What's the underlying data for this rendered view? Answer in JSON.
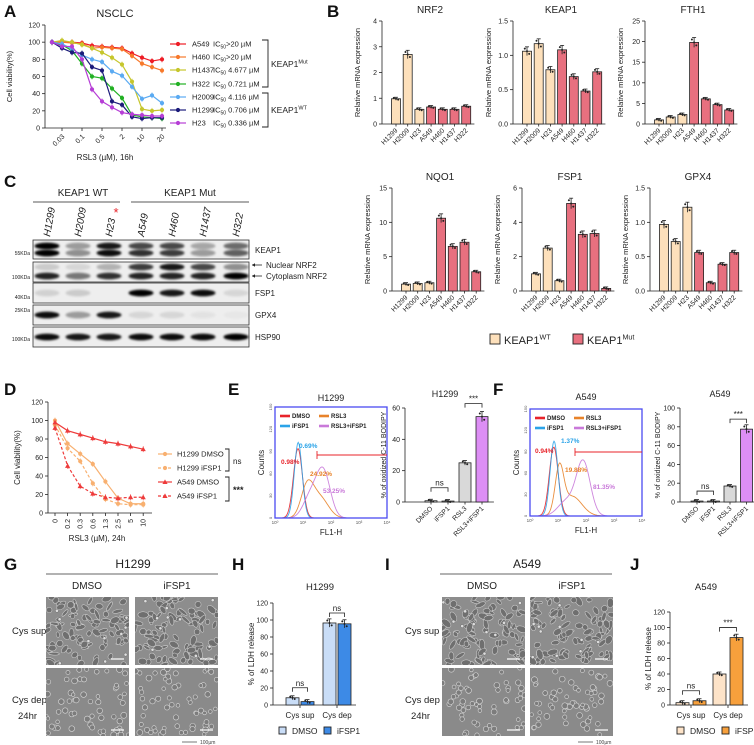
{
  "panel_labels": [
    "A",
    "B",
    "C",
    "D",
    "E",
    "F",
    "G",
    "H",
    "I",
    "J"
  ],
  "chart_data": [
    {
      "type": "line",
      "panel": "A",
      "title": "NSCLC",
      "xlabel": "RSL3 (µM), 16h",
      "ylabel": "Cell viability(%)",
      "ylim": [
        0,
        120
      ],
      "yticks": [
        "0",
        "20",
        "40",
        "60",
        "80",
        "100",
        "120"
      ],
      "xtick_labels": [
        "0.03",
        "0.1",
        "0.5",
        "2",
        "10",
        "20"
      ],
      "xtick_point_index": [
        1,
        3,
        5,
        7,
        9,
        11
      ],
      "ic50_prefix": "IC",
      "ic50_sub": "50",
      "series": [
        {
          "name": "A549",
          "ic50": ">20 µM",
          "group": "Mut",
          "color": "#ee1c25",
          "values": [
            100,
            100,
            100,
            99,
            96,
            95,
            94,
            93,
            87,
            82,
            78,
            80
          ]
        },
        {
          "name": "H460",
          "ic50": ">20 µM",
          "group": "Mut",
          "color": "#f7792b",
          "values": [
            100,
            100,
            99,
            98,
            93,
            94,
            93,
            92,
            84,
            75,
            71,
            67
          ]
        },
        {
          "name": "H1437",
          "ic50": " 4.677 µM",
          "group": "Mut",
          "color": "#c6c62c",
          "values": [
            100,
            102,
            100,
            97,
            93,
            88,
            82,
            74,
            54,
            22,
            20,
            21
          ]
        },
        {
          "name": "H322",
          "ic50": " 0.721 µM",
          "group": "Mut",
          "color": "#21b023",
          "values": [
            100,
            97,
            90,
            75,
            60,
            58,
            46,
            35,
            15,
            13,
            12,
            11
          ]
        },
        {
          "name": "H2009",
          "ic50": " 4.116 µM",
          "group": "WT",
          "color": "#5aaaf2",
          "values": [
            100,
            98,
            92,
            85,
            80,
            77,
            66,
            61,
            48,
            34,
            38,
            29
          ]
        },
        {
          "name": "H1299",
          "ic50": " 0.706 µM",
          "group": "WT",
          "color": "#1b1b7a",
          "values": [
            100,
            93,
            88,
            87,
            71,
            67,
            31,
            27,
            13,
            11,
            12,
            12
          ]
        },
        {
          "name": "H23",
          "ic50": " 0.336 µM",
          "group": "WT",
          "color": "#b63ed6",
          "values": [
            100,
            95,
            95,
            80,
            45,
            31,
            24,
            18,
            16,
            15,
            14,
            14
          ]
        }
      ],
      "groups": [
        {
          "base": "KEAP1",
          "sup": "Mut"
        },
        {
          "base": "KEAP1",
          "sup": "WT"
        }
      ]
    },
    {
      "type": "bar",
      "panel": "B",
      "title": "NRF2",
      "ylabel": "Relative mRNA expression",
      "categories": [
        "H1299",
        "H2009",
        "H23",
        "A549",
        "H460",
        "H1437",
        "H322"
      ],
      "genotype": [
        "WT",
        "WT",
        "WT",
        "Mut",
        "Mut",
        "Mut",
        "Mut"
      ],
      "values": [
        0.98,
        2.7,
        0.57,
        0.66,
        0.57,
        0.57,
        0.69
      ],
      "ylim": [
        0,
        4
      ],
      "yticks": [
        "0",
        "1",
        "2",
        "3",
        "4"
      ]
    },
    {
      "type": "bar",
      "panel": "B",
      "title": "KEAP1",
      "ylabel": "Relative mRNA expression",
      "categories": [
        "H1299",
        "H2009",
        "H23",
        "A549",
        "H460",
        "H1437",
        "H322"
      ],
      "genotype": [
        "WT",
        "WT",
        "WT",
        "Mut",
        "Mut",
        "Mut",
        "Mut"
      ],
      "values": [
        1.06,
        1.17,
        0.79,
        1.08,
        0.69,
        0.48,
        0.76
      ],
      "ylim": [
        0,
        1.5
      ],
      "yticks": [
        "0.0",
        "0.5",
        "1.0",
        "1.5"
      ]
    },
    {
      "type": "bar",
      "panel": "B",
      "title": "FTH1",
      "ylabel": "Relative mRNA expression",
      "categories": [
        "H1299",
        "H2009",
        "H23",
        "A549",
        "H460",
        "H1437",
        "H322"
      ],
      "genotype": [
        "WT",
        "WT",
        "WT",
        "Mut",
        "Mut",
        "Mut",
        "Mut"
      ],
      "values": [
        1.0,
        1.7,
        2.3,
        19.8,
        6.1,
        4.7,
        3.4
      ],
      "ylim": [
        0,
        25
      ],
      "yticks": [
        "0",
        "5",
        "10",
        "15",
        "20",
        "25"
      ]
    },
    {
      "type": "bar",
      "panel": "B",
      "title": "NQO1",
      "ylabel": "Relative mRNA expression",
      "categories": [
        "H1299",
        "H2009",
        "H23",
        "A549",
        "H460",
        "H1437",
        "H322"
      ],
      "genotype": [
        "WT",
        "WT",
        "WT",
        "Mut",
        "Mut",
        "Mut",
        "Mut"
      ],
      "values": [
        1.0,
        1.1,
        1.2,
        10.6,
        6.5,
        7.1,
        2.8
      ],
      "ylim": [
        0,
        15
      ],
      "yticks": [
        "0",
        "5",
        "10",
        "15"
      ]
    },
    {
      "type": "bar",
      "panel": "B",
      "title": "FSP1",
      "ylabel": "Relative mRNA expression",
      "categories": [
        "H1299",
        "H2009",
        "H23",
        "A549",
        "H460",
        "H1437",
        "H322"
      ],
      "genotype": [
        "WT",
        "WT",
        "WT",
        "Mut",
        "Mut",
        "Mut",
        "Mut"
      ],
      "values": [
        1.0,
        2.5,
        0.6,
        5.1,
        3.3,
        3.35,
        0.15
      ],
      "ylim": [
        0,
        6
      ],
      "yticks": [
        "0",
        "2",
        "4",
        "6"
      ]
    },
    {
      "type": "bar",
      "panel": "B",
      "title": "GPX4",
      "ylabel": "Relative mRNA expression",
      "categories": [
        "H1299",
        "H2009",
        "H23",
        "A549",
        "H460",
        "H1437",
        "H322"
      ],
      "genotype": [
        "WT",
        "WT",
        "WT",
        "Mut",
        "Mut",
        "Mut",
        "Mut"
      ],
      "values": [
        0.97,
        0.72,
        1.22,
        0.56,
        0.12,
        0.39,
        0.56
      ],
      "ylim": [
        0,
        1.5
      ],
      "yticks": [
        "0.0",
        "0.5",
        "1.0",
        "1.5"
      ]
    },
    {
      "type": "line",
      "panel": "D",
      "xlabel": "RSL3 (µM), 24h",
      "ylabel": "Cell viability(%)",
      "ylim": [
        0,
        120
      ],
      "yticks": [
        "0",
        "20",
        "40",
        "60",
        "80",
        "100",
        "120"
      ],
      "categories": [
        "0",
        "0.2",
        "0.3",
        "0.6",
        "1.3",
        "2.5",
        "5",
        "10"
      ],
      "series": [
        {
          "name": "H1299 DMSO",
          "color": "#f8b070",
          "marker": "circle",
          "dashed": false,
          "values": [
            100,
            75,
            64,
            53,
            34,
            16,
            10,
            10
          ]
        },
        {
          "name": "H1299 iFSP1",
          "color": "#f8b070",
          "marker": "circle",
          "dashed": true,
          "values": [
            95,
            70,
            56,
            32,
            15,
            10,
            9,
            9
          ]
        },
        {
          "name": "A549 DMSO",
          "color": "#ee3b3b",
          "marker": "triangle",
          "dashed": false,
          "values": [
            98,
            89,
            85,
            81,
            77,
            75,
            72,
            69
          ]
        },
        {
          "name": "A549 iFSP1",
          "color": "#ee3b3b",
          "marker": "triangle",
          "dashed": true,
          "values": [
            92,
            51,
            29,
            21,
            17,
            16,
            17,
            17
          ]
        }
      ],
      "significance": [
        {
          "series": [
            0,
            1
          ],
          "label": "ns"
        },
        {
          "series": [
            2,
            3
          ],
          "label": "***"
        }
      ]
    },
    {
      "type": "bar",
      "panel": "E",
      "title": "H1299",
      "ylabel": "% of oxidized C-11 BODIPY",
      "categories": [
        "DMSO",
        "iFSP1",
        "RSL3",
        "RSL3+iFSP1"
      ],
      "values": [
        0.8,
        0.6,
        25,
        54.5
      ],
      "colors": [
        "#ffffff",
        "#ffffff",
        "#d9d9d9",
        "#dd8ef5"
      ],
      "ylim": [
        0,
        60
      ],
      "yticks": [
        "0",
        "20",
        "40",
        "60"
      ],
      "significance": [
        {
          "pair": [
            0,
            1
          ],
          "label": "ns"
        },
        {
          "pair": [
            2,
            3
          ],
          "label": "***"
        }
      ]
    },
    {
      "type": "bar",
      "panel": "F",
      "title": "A549",
      "ylabel": "% of oxidized C-11 BODIPY",
      "categories": [
        "DMSO",
        "iFSP1",
        "RSL3",
        "RSL3+iFSP1"
      ],
      "values": [
        1,
        1,
        17,
        77.5
      ],
      "colors": [
        "#ffffff",
        "#ffffff",
        "#d9d9d9",
        "#dd8ef5"
      ],
      "ylim": [
        0,
        100
      ],
      "yticks": [
        "0",
        "20",
        "40",
        "60",
        "80",
        "100"
      ],
      "significance": [
        {
          "pair": [
            0,
            1
          ],
          "label": "ns"
        },
        {
          "pair": [
            2,
            3
          ],
          "label": "***"
        }
      ]
    },
    {
      "type": "bar",
      "panel": "H",
      "title": "H1299",
      "ylabel": "% of LDH release",
      "groups": [
        "Cys sup",
        "Cys dep"
      ],
      "series": [
        {
          "name": "DMSO",
          "color": "#c9ddf7",
          "values": [
            8.5,
            96.5
          ]
        },
        {
          "name": "iFSP1",
          "color": "#3d8ae6",
          "values": [
            4,
            95.5
          ]
        }
      ],
      "ylim": [
        0,
        120
      ],
      "yticks": [
        "0",
        "20",
        "40",
        "60",
        "80",
        "100",
        "120"
      ],
      "significance": [
        {
          "group": 0,
          "label": "ns"
        },
        {
          "group": 1,
          "label": "ns"
        }
      ]
    },
    {
      "type": "bar",
      "panel": "J",
      "title": "A549",
      "ylabel": "% of LDH release",
      "groups": [
        "Cys sup",
        "Cys dep"
      ],
      "series": [
        {
          "name": "DMSO",
          "color": "#fde3c8",
          "values": [
            3,
            40
          ]
        },
        {
          "name": "iFSP1",
          "color": "#f7a03c",
          "values": [
            5.5,
            87
          ]
        }
      ],
      "ylim": [
        0,
        120
      ],
      "yticks": [
        "0",
        "20",
        "40",
        "60",
        "80",
        "100",
        "120"
      ],
      "significance": [
        {
          "group": 0,
          "label": "ns"
        },
        {
          "group": 1,
          "label": "***"
        }
      ]
    }
  ],
  "b_legend": {
    "wt": {
      "base": "KEAP1",
      "sup": "WT",
      "color": "#fde0bb"
    },
    "mut": {
      "base": "KEAP1",
      "sup": "Mut",
      "color": "#e8707f"
    }
  },
  "western_blot": {
    "groups": [
      "KEAP1 WT",
      "KEAP1 Mut"
    ],
    "lanes": [
      "H1299",
      "H2009",
      "H23",
      "A549",
      "H460",
      "H1437",
      "H322"
    ],
    "asterisk": "*",
    "rows": [
      {
        "protein": "KEAP1",
        "marker": "55KDa"
      },
      {
        "protein_labels": [
          "Nuclear NRF2",
          "Cytoplasm NRF2"
        ],
        "marker": "100KDa"
      },
      {
        "protein": "FSP1",
        "marker": "40KDa"
      },
      {
        "protein": "GPX4",
        "marker": "25KDa"
      },
      {
        "protein": "HSP90",
        "marker": "100KDa"
      }
    ]
  },
  "flow_cytometry": [
    {
      "panel": "E",
      "title": "H1299",
      "xlabel": "FL1-H",
      "ylabel": "Counts",
      "xticks": [
        "10⁰",
        "10¹",
        "10²",
        "10³",
        "10⁴"
      ],
      "yticks": [
        "0",
        "30",
        "60",
        "90",
        "120",
        "150"
      ],
      "legend": [
        {
          "label": "DMSO",
          "color": "#e8232a"
        },
        {
          "label": "RSL3",
          "color": "#e8832a"
        },
        {
          "label": "iFSP1",
          "color": "#2aa3e8"
        },
        {
          "label": "RSL3+iFSP1",
          "color": "#c979d9"
        }
      ],
      "percentages": [
        {
          "label": "0.69%",
          "color": "#2aa3e8"
        },
        {
          "label": "0.98%",
          "color": "#e8232a"
        },
        {
          "label": "24.92%",
          "color": "#e8832a"
        },
        {
          "label": "53.25%",
          "color": "#c979d9"
        }
      ]
    },
    {
      "panel": "F",
      "title": "A549",
      "xlabel": "FL1-H",
      "ylabel": "Counts",
      "xticks": [
        "10⁰",
        "10¹",
        "10²",
        "10³",
        "10⁴"
      ],
      "yticks": [
        "0",
        "30",
        "60",
        "90",
        "120",
        "150"
      ],
      "legend": [
        {
          "label": "DMSO",
          "color": "#e8232a"
        },
        {
          "label": "RSL3",
          "color": "#e8832a"
        },
        {
          "label": "iFSP1",
          "color": "#2aa3e8"
        },
        {
          "label": "RSL3+iFSP1",
          "color": "#c979d9"
        }
      ],
      "percentages": [
        {
          "label": "1.37%",
          "color": "#2aa3e8"
        },
        {
          "label": "0.94%",
          "color": "#e8232a"
        },
        {
          "label": "19.88%",
          "color": "#e8832a"
        },
        {
          "label": "81.35%",
          "color": "#c979d9"
        }
      ]
    }
  ],
  "micrographs": [
    {
      "panel": "G",
      "cell_line": "H1299",
      "columns": [
        "DMSO",
        "iFSP1"
      ],
      "rows": [
        "Cys sup",
        "Cys dep"
      ],
      "row_note": "24hr",
      "scale_bar": "100µm"
    },
    {
      "panel": "I",
      "cell_line": "A549",
      "columns": [
        "DMSO",
        "iFSP1"
      ],
      "rows": [
        "Cys sup",
        "Cys dep"
      ],
      "row_note": "24hr",
      "scale_bar": "100µm"
    }
  ]
}
